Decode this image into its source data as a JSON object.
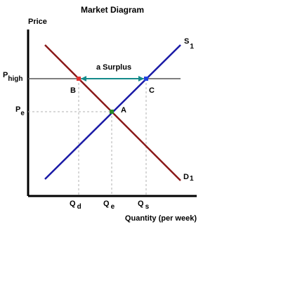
{
  "diagram": {
    "title": "Market Diagram",
    "y_axis_label": "Price",
    "x_axis_label": "Quantity (per week)",
    "supply_label": {
      "main": "S",
      "sub": "1"
    },
    "demand_label": {
      "main": "D",
      "sub": "1"
    },
    "price_high_label": {
      "main": "P",
      "sub": "high"
    },
    "price_eq_label": {
      "main": "P",
      "sub": "e"
    },
    "quantity_labels": [
      {
        "main": "Q",
        "sub": "d"
      },
      {
        "main": "Q",
        "sub": "e"
      },
      {
        "main": "Q",
        "sub": "s"
      }
    ],
    "surplus_label": "a Surplus",
    "points": {
      "B": "B",
      "C": "C",
      "A": "A"
    },
    "colors": {
      "supply": "#1a1aa6",
      "demand": "#8b1a1a",
      "surplus_arrow": "#158a8a",
      "price_line": "#555555",
      "guide": "#b0b0b0",
      "point_B": "#e03030",
      "point_C": "#2040e0",
      "point_A": "#2a8a2a"
    }
  }
}
